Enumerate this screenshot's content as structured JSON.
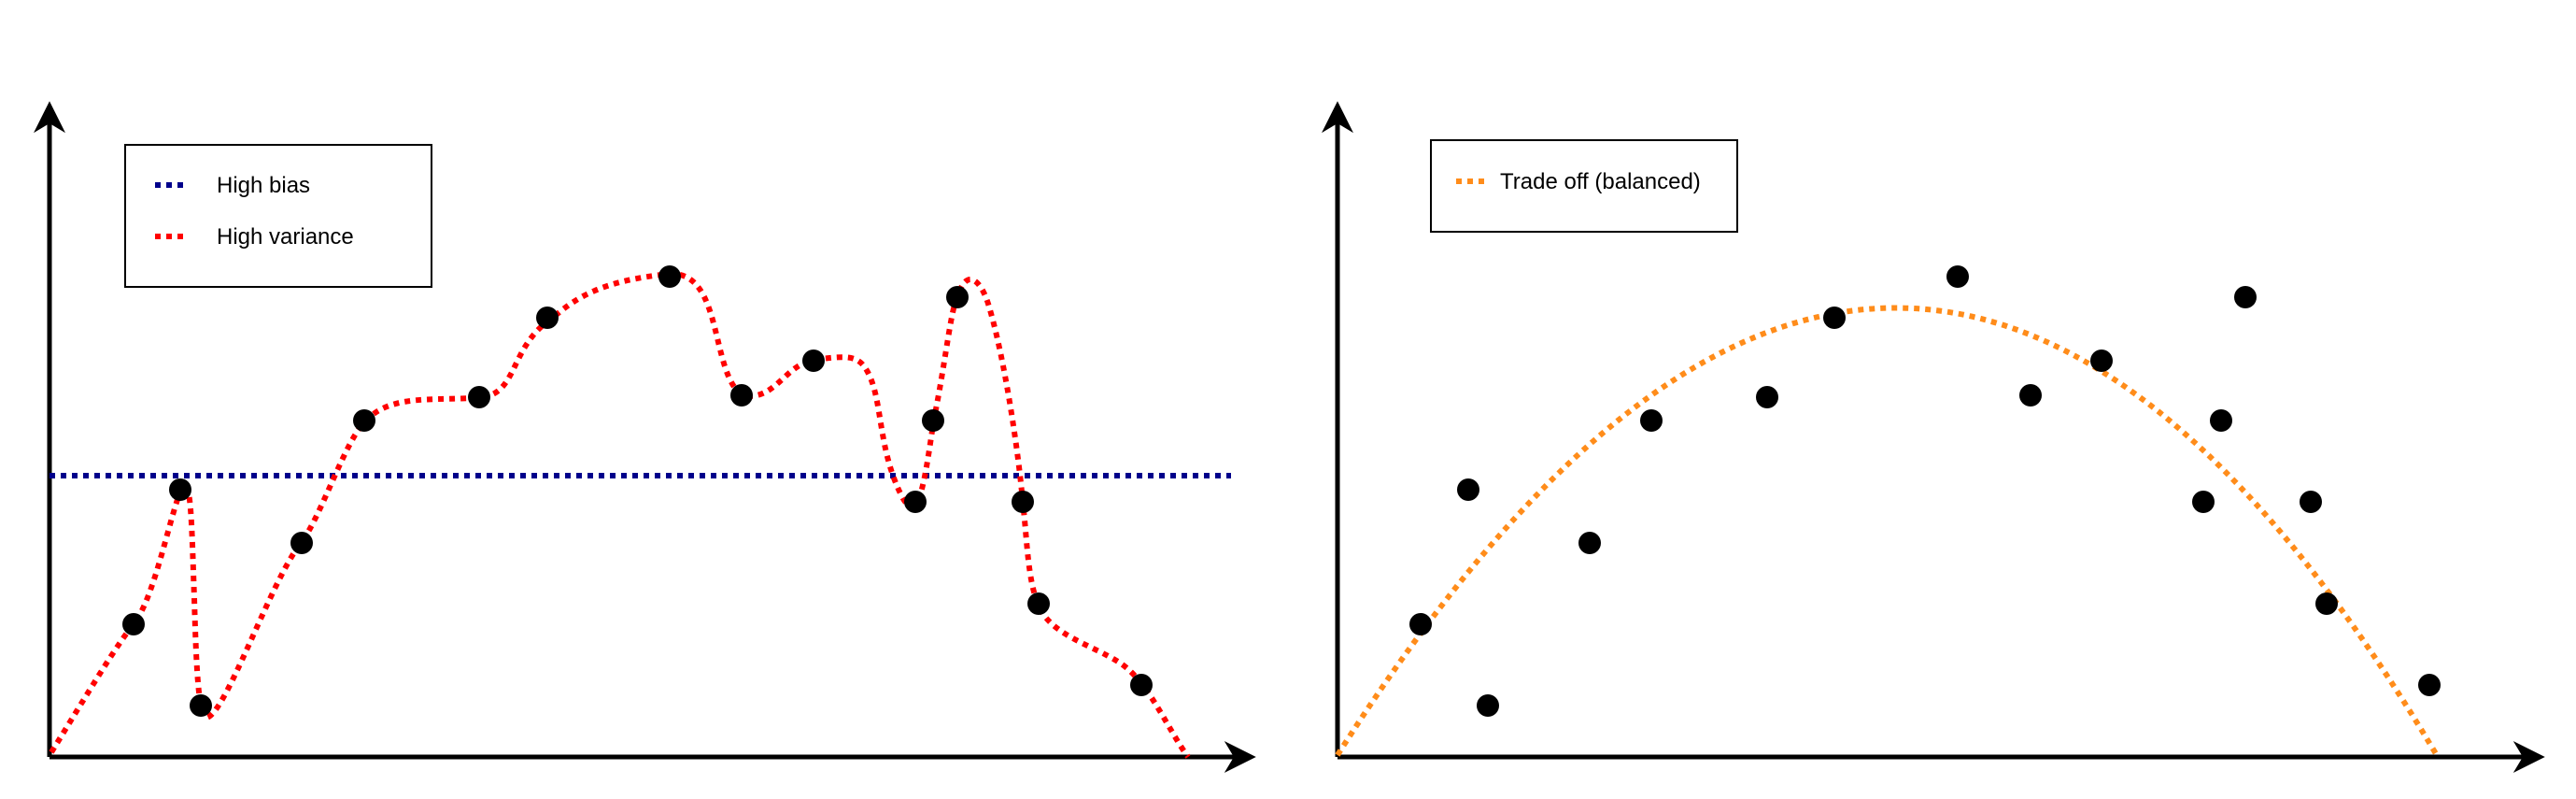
{
  "panels": [
    {
      "legend": [
        {
          "label": "High bias",
          "color": "#00008B"
        },
        {
          "label": "High variance",
          "color": "#FF0000"
        }
      ]
    },
    {
      "legend": [
        {
          "label": "Trade off (balanced)",
          "color": "#FF8C1A"
        }
      ]
    }
  ],
  "colors": {
    "axes": "#000000",
    "points": "#000000",
    "legend_border": "#000000"
  }
}
